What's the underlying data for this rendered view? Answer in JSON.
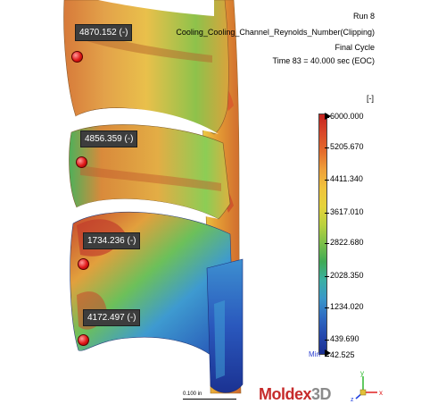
{
  "header": {
    "run": "Run 8",
    "quantity": "Cooling_Cooling_Channel_Reynolds_Number(Clipping)",
    "cycle": "Final Cycle",
    "time": "Time 83 = 40.000 sec (EOC)"
  },
  "legend": {
    "unit": "[-]",
    "ticks": [
      "6000.000",
      "5205.670",
      "4411.340",
      "3617.010",
      "2822.680",
      "2028.350",
      "1234.020",
      "439.690",
      "42.525"
    ],
    "min_label": "Min"
  },
  "probes": [
    {
      "value": "4870.152 (-)"
    },
    {
      "value": "4856.359 (-)"
    },
    {
      "value": "1734.236 (-)"
    },
    {
      "value": "4172.497 (-)"
    }
  ],
  "scale": {
    "label": "0.100 in"
  },
  "brand": {
    "name": "Moldex",
    "suffix": "3D"
  },
  "triad": {
    "x": "x",
    "y": "y",
    "z": "z"
  }
}
